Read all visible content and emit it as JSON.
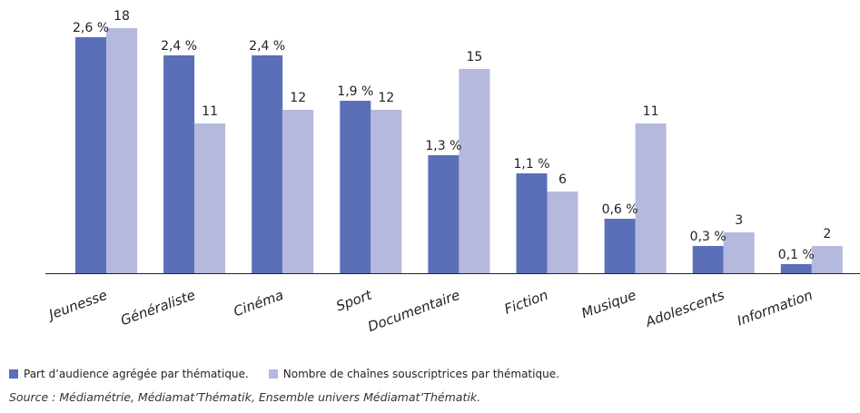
{
  "chart_data": {
    "type": "bar",
    "categories": [
      "Jeunesse",
      "Généraliste",
      "Cinéma",
      "Sport",
      "Documentaire",
      "Fiction",
      "Musique",
      "Adolescents",
      "Information"
    ],
    "series": [
      {
        "name": "Part d'audience agrégée par thématique.",
        "values": [
          2.6,
          2.4,
          2.4,
          1.9,
          1.3,
          1.1,
          0.6,
          0.3,
          0.1
        ],
        "labels": [
          "2,6 %",
          "2,4 %",
          "2,4 %",
          "1,9 %",
          "1,3 %",
          "1,1 %",
          "0,6 %",
          "0,3 %",
          "0,1 %"
        ],
        "color": "#5b6eb8",
        "scale_max": 3.0
      },
      {
        "name": "Nombre de chaînes souscriptrices par thématique.",
        "values": [
          18,
          11,
          12,
          12,
          15,
          6,
          11,
          3,
          2
        ],
        "labels": [
          "18",
          "11",
          "12",
          "12",
          "15",
          "6",
          "11",
          "3",
          "2"
        ],
        "color": "#b4b9dd",
        "scale_max": 20
      }
    ],
    "grid": false,
    "legend_position": "bottom-left"
  },
  "legend": {
    "audience_label": "Part d’audience agrégée par thématique.",
    "chaines_label": "Nombre de chaînes souscriptrices par thématique."
  },
  "source": "Source : Médiamétrie, Médiamat’Thématik, Ensemble univers Médiamat’Thématik."
}
